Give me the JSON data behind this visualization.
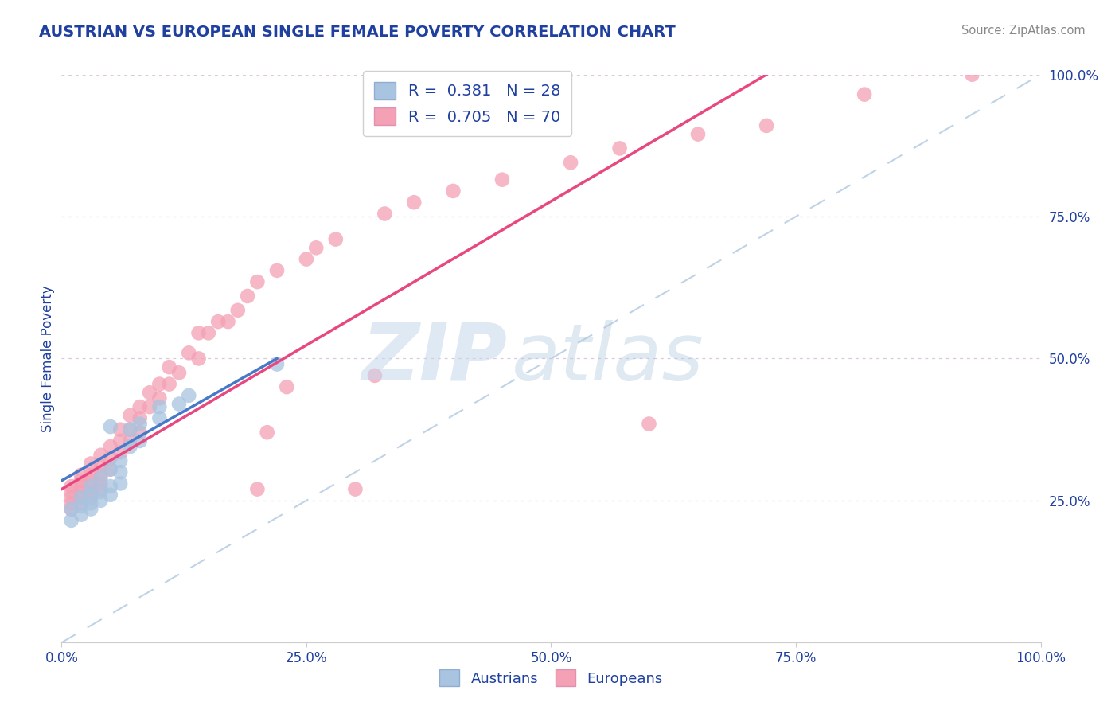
{
  "title": "AUSTRIAN VS EUROPEAN SINGLE FEMALE POVERTY CORRELATION CHART",
  "source": "Source: ZipAtlas.com",
  "ylabel": "Single Female Poverty",
  "xlim": [
    0.0,
    1.0
  ],
  "ylim": [
    0.0,
    1.0
  ],
  "xtick_labels": [
    "0.0%",
    "25.0%",
    "50.0%",
    "75.0%",
    "100.0%"
  ],
  "xtick_vals": [
    0.0,
    0.25,
    0.5,
    0.75,
    1.0
  ],
  "right_ytick_labels": [
    "25.0%",
    "50.0%",
    "75.0%",
    "100.0%"
  ],
  "right_ytick_vals": [
    0.25,
    0.5,
    0.75,
    1.0
  ],
  "austrian_color": "#a8c4e0",
  "european_color": "#f4a0b5",
  "austrian_line_color": "#4878c8",
  "european_line_color": "#e84880",
  "diagonal_color": "#b0c8e0",
  "austrian_R": 0.381,
  "austrian_N": 28,
  "european_R": 0.705,
  "european_N": 70,
  "background_color": "#ffffff",
  "grid_color": "#dcc8dc",
  "title_color": "#2040a0",
  "axis_label_color": "#2040a0",
  "tick_color": "#2040a0",
  "source_color": "#888888",
  "austrian_line": [
    [
      0.0,
      0.285
    ],
    [
      0.22,
      0.5
    ]
  ],
  "european_line": [
    [
      0.0,
      0.27
    ],
    [
      0.72,
      1.0
    ]
  ],
  "austrian_scatter": [
    [
      0.01,
      0.215
    ],
    [
      0.01,
      0.235
    ],
    [
      0.02,
      0.225
    ],
    [
      0.02,
      0.24
    ],
    [
      0.02,
      0.255
    ],
    [
      0.03,
      0.235
    ],
    [
      0.03,
      0.245
    ],
    [
      0.03,
      0.26
    ],
    [
      0.03,
      0.275
    ],
    [
      0.04,
      0.25
    ],
    [
      0.04,
      0.265
    ],
    [
      0.04,
      0.29
    ],
    [
      0.05,
      0.26
    ],
    [
      0.05,
      0.275
    ],
    [
      0.05,
      0.305
    ],
    [
      0.05,
      0.38
    ],
    [
      0.06,
      0.28
    ],
    [
      0.06,
      0.3
    ],
    [
      0.06,
      0.32
    ],
    [
      0.07,
      0.345
    ],
    [
      0.07,
      0.375
    ],
    [
      0.08,
      0.355
    ],
    [
      0.08,
      0.385
    ],
    [
      0.1,
      0.395
    ],
    [
      0.1,
      0.415
    ],
    [
      0.12,
      0.42
    ],
    [
      0.13,
      0.435
    ],
    [
      0.22,
      0.49
    ]
  ],
  "european_scatter": [
    [
      0.01,
      0.235
    ],
    [
      0.01,
      0.245
    ],
    [
      0.01,
      0.255
    ],
    [
      0.01,
      0.265
    ],
    [
      0.01,
      0.275
    ],
    [
      0.02,
      0.245
    ],
    [
      0.02,
      0.255
    ],
    [
      0.02,
      0.265
    ],
    [
      0.02,
      0.275
    ],
    [
      0.02,
      0.285
    ],
    [
      0.02,
      0.295
    ],
    [
      0.03,
      0.255
    ],
    [
      0.03,
      0.265
    ],
    [
      0.03,
      0.275
    ],
    [
      0.03,
      0.285
    ],
    [
      0.03,
      0.295
    ],
    [
      0.03,
      0.315
    ],
    [
      0.04,
      0.27
    ],
    [
      0.04,
      0.28
    ],
    [
      0.04,
      0.295
    ],
    [
      0.04,
      0.31
    ],
    [
      0.04,
      0.33
    ],
    [
      0.05,
      0.305
    ],
    [
      0.05,
      0.325
    ],
    [
      0.05,
      0.345
    ],
    [
      0.06,
      0.335
    ],
    [
      0.06,
      0.355
    ],
    [
      0.06,
      0.375
    ],
    [
      0.07,
      0.355
    ],
    [
      0.07,
      0.375
    ],
    [
      0.07,
      0.4
    ],
    [
      0.08,
      0.37
    ],
    [
      0.08,
      0.395
    ],
    [
      0.08,
      0.415
    ],
    [
      0.09,
      0.415
    ],
    [
      0.09,
      0.44
    ],
    [
      0.1,
      0.43
    ],
    [
      0.1,
      0.455
    ],
    [
      0.11,
      0.455
    ],
    [
      0.11,
      0.485
    ],
    [
      0.12,
      0.475
    ],
    [
      0.13,
      0.51
    ],
    [
      0.14,
      0.5
    ],
    [
      0.14,
      0.545
    ],
    [
      0.15,
      0.545
    ],
    [
      0.16,
      0.565
    ],
    [
      0.17,
      0.565
    ],
    [
      0.18,
      0.585
    ],
    [
      0.19,
      0.61
    ],
    [
      0.2,
      0.635
    ],
    [
      0.2,
      0.27
    ],
    [
      0.21,
      0.37
    ],
    [
      0.22,
      0.655
    ],
    [
      0.23,
      0.45
    ],
    [
      0.25,
      0.675
    ],
    [
      0.26,
      0.695
    ],
    [
      0.28,
      0.71
    ],
    [
      0.3,
      0.27
    ],
    [
      0.32,
      0.47
    ],
    [
      0.33,
      0.755
    ],
    [
      0.36,
      0.775
    ],
    [
      0.4,
      0.795
    ],
    [
      0.45,
      0.815
    ],
    [
      0.52,
      0.845
    ],
    [
      0.57,
      0.87
    ],
    [
      0.6,
      0.385
    ],
    [
      0.65,
      0.895
    ],
    [
      0.72,
      0.91
    ],
    [
      0.82,
      0.965
    ],
    [
      0.93,
      1.0
    ]
  ]
}
